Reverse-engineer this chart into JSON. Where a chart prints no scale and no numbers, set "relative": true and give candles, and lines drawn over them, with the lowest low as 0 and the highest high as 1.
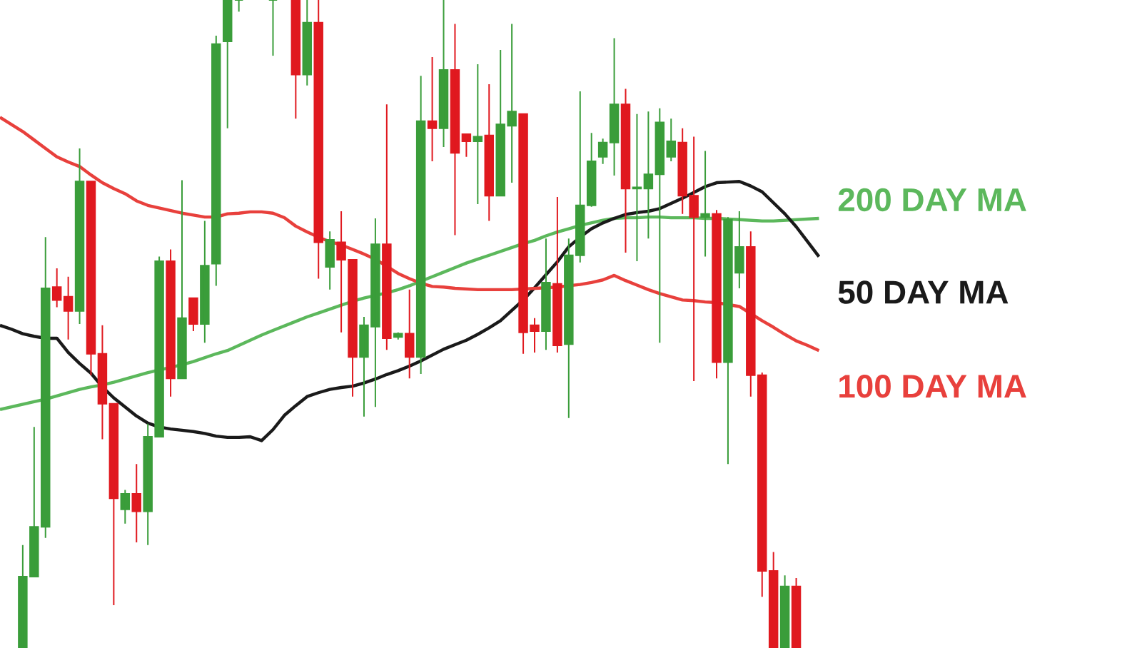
{
  "chart_data": {
    "type": "candlestick",
    "relative": true,
    "marker": "none",
    "line_style": "solid",
    "categories": [
      null,
      null,
      null,
      null,
      null,
      null,
      null,
      null,
      null,
      null,
      null,
      null,
      null,
      null,
      null,
      null,
      null,
      null,
      null,
      null,
      null,
      null,
      null,
      null,
      null,
      null,
      null,
      null,
      null,
      null,
      null,
      null,
      null,
      null,
      null,
      null,
      null,
      null,
      null,
      null,
      null,
      null,
      null,
      null,
      null,
      null,
      null,
      null,
      null,
      null,
      null,
      null,
      null,
      null,
      null,
      null,
      null,
      null,
      null,
      null,
      null,
      null,
      null,
      null,
      null,
      null,
      null,
      null,
      null,
      null,
      null,
      null,
      null
    ],
    "ohlc": [
      null,
      null,
      [
        0,
        0.159,
        0,
        0.11
      ],
      [
        0.11,
        0.341,
        0.11,
        0.187
      ],
      [
        0.187,
        0.634,
        0.17,
        0.555
      ],
      [
        0.557,
        0.586,
        0.526,
        0.537
      ],
      [
        0.542,
        0.573,
        0.476,
        0.52
      ],
      [
        0.52,
        0.771,
        0.5,
        0.72
      ],
      [
        0.72,
        0.72,
        0.421,
        0.454
      ],
      [
        0.454,
        0.498,
        0.322,
        0.377
      ],
      [
        0.377,
        0.377,
        0.066,
        0.231
      ],
      [
        0.214,
        0.244,
        0.192,
        0.238
      ],
      [
        0.238,
        0.284,
        0.163,
        0.211
      ],
      [
        0.211,
        0.346,
        0.159,
        0.326
      ],
      [
        0.326,
        0.604,
        0.326,
        0.597
      ],
      [
        0.597,
        0.615,
        0.388,
        0.416
      ],
      [
        0.416,
        0.722,
        0.416,
        0.509
      ],
      [
        0.54,
        0.54,
        0.489,
        0.5
      ],
      [
        0.5,
        0.659,
        0.471,
        0.59
      ],
      [
        0.593,
        0.945,
        0.559,
        0.932
      ],
      [
        0.936,
        1,
        0.802,
        1
      ],
      [
        1,
        1,
        0.982,
        1
      ],
      null,
      null,
      [
        1,
        1,
        0.914,
        1
      ],
      null,
      [
        1,
        1,
        0.817,
        0.885
      ],
      [
        0.885,
        1,
        0.868,
        0.965
      ],
      [
        0.965,
        1,
        0.57,
        0.626
      ],
      [
        0.588,
        0.643,
        0.553,
        0.63
      ],
      [
        0.626,
        0.674,
        0.487,
        0.599
      ],
      [
        0.599,
        0.599,
        0.388,
        0.449
      ],
      [
        0.449,
        0.511,
        0.357,
        0.498
      ],
      [
        0.496,
        0.663,
        0.372,
        0.623
      ],
      [
        0.623,
        0.839,
        0.46,
        0.478
      ],
      [
        0.48,
        0.487,
        0.476,
        0.485
      ],
      [
        0.485,
        0.553,
        0.416,
        0.449
      ],
      [
        0.449,
        0.883,
        0.423,
        0.813
      ],
      [
        0.813,
        0.912,
        0.751,
        0.802
      ],
      [
        0.802,
        1,
        0.773,
        0.892
      ],
      [
        0.892,
        0.963,
        0.637,
        0.764
      ],
      [
        0.793,
        0.793,
        0.758,
        0.782
      ],
      [
        0.782,
        0.901,
        0.685,
        0.789
      ],
      [
        0.791,
        0.87,
        0.659,
        0.698
      ],
      [
        0.698,
        0.923,
        0.698,
        0.808
      ],
      [
        0.806,
        0.963,
        0.718,
        0.828
      ],
      [
        0.824,
        0.824,
        0.454,
        0.487
      ],
      [
        0.498,
        0.509,
        0.456,
        0.489
      ],
      [
        0.489,
        0.632,
        0.46,
        0.564
      ],
      [
        0.562,
        0.696,
        0.456,
        0.467
      ],
      [
        0.469,
        0.632,
        0.355,
        0.606
      ],
      [
        0.606,
        0.859,
        0.595,
        0.683
      ],
      [
        0.683,
        0.795,
        0.681,
        0.751
      ],
      [
        0.758,
        0.786,
        0.747,
        0.78
      ],
      [
        0.78,
        0.941,
        0.729,
        0.839
      ],
      [
        0.839,
        0.863,
        0.61,
        0.709
      ],
      [
        0.709,
        0.824,
        0.597,
        0.711
      ],
      [
        0.709,
        0.828,
        0.632,
        0.731
      ],
      [
        0.731,
        0.833,
        0.471,
        0.811
      ],
      [
        0.758,
        0.817,
        0.751,
        0.782
      ],
      [
        0.78,
        0.802,
        0.67,
        0.698
      ],
      [
        0.698,
        0.789,
        0.412,
        0.665
      ],
      [
        0.665,
        0.767,
        0.604,
        0.67
      ],
      [
        0.67,
        0.676,
        0.416,
        0.441
      ],
      [
        0.441,
        0.665,
        0.284,
        0.661
      ],
      [
        0.579,
        0.674,
        0.555,
        0.619
      ],
      [
        0.619,
        0.643,
        0.388,
        0.421
      ],
      [
        0.421,
        0.425,
        0.079,
        0.119
      ],
      [
        0.119,
        0.148,
        0,
        0
      ],
      [
        0,
        0.112,
        0,
        0.095
      ],
      [
        0.095,
        0.108,
        0,
        0
      ],
      null,
      null
    ],
    "colors": [
      null,
      null,
      "#3a9d3a",
      "#3a9d3a",
      "#3a9d3a",
      "#e0191f",
      "#e0191f",
      "#3a9d3a",
      "#e0191f",
      "#e0191f",
      "#e0191f",
      "#3a9d3a",
      "#e0191f",
      "#3a9d3a",
      "#3a9d3a",
      "#e0191f",
      "#3a9d3a",
      "#e0191f",
      "#3a9d3a",
      "#3a9d3a",
      "#3a9d3a",
      "#3a9d3a",
      null,
      null,
      "#3a9d3a",
      null,
      "#e0191f",
      "#3a9d3a",
      "#e0191f",
      "#3a9d3a",
      "#e0191f",
      "#e0191f",
      "#3a9d3a",
      "#3a9d3a",
      "#e0191f",
      "#3a9d3a",
      "#e0191f",
      "#3a9d3a",
      "#e0191f",
      "#3a9d3a",
      "#e0191f",
      "#e0191f",
      "#3a9d3a",
      "#e0191f",
      "#3a9d3a",
      "#3a9d3a",
      "#e0191f",
      "#e0191f",
      "#3a9d3a",
      "#e0191f",
      "#3a9d3a",
      "#3a9d3a",
      "#3a9d3a",
      "#3a9d3a",
      "#3a9d3a",
      "#e0191f",
      "#3a9d3a",
      "#3a9d3a",
      "#3a9d3a",
      "#3a9d3a",
      "#e0191f",
      "#e0191f",
      "#3a9d3a",
      "#e0191f",
      "#3a9d3a",
      "#3a9d3a",
      "#e0191f",
      "#e0191f",
      "#e0191f",
      "#3a9d3a",
      "#e0191f",
      null,
      null
    ],
    "series": [
      {
        "name": "200 DAY MA",
        "type": "line",
        "color": "#5cb85c",
        "values": [
          0.368,
          0.372,
          0.376,
          0.38,
          0.384,
          0.389,
          0.394,
          0.399,
          0.403,
          0.406,
          0.41,
          0.415,
          0.42,
          0.425,
          0.429,
          0.433,
          0.437,
          0.442,
          0.448,
          0.454,
          0.459,
          0.467,
          0.475,
          0.483,
          0.49,
          0.497,
          0.504,
          0.511,
          0.517,
          0.523,
          0.529,
          0.535,
          0.54,
          0.544,
          0.548,
          0.553,
          0.559,
          0.566,
          0.573,
          0.58,
          0.587,
          0.594,
          0.6,
          0.606,
          0.612,
          0.618,
          0.624,
          0.629,
          0.636,
          0.642,
          0.647,
          0.652,
          0.656,
          0.66,
          0.663,
          0.664,
          0.664,
          0.665,
          0.665,
          0.664,
          0.664,
          0.664,
          0.663,
          0.663,
          0.662,
          0.661,
          0.66,
          0.659,
          0.659,
          0.66,
          0.661,
          0.662,
          0.663
        ]
      },
      {
        "name": "50 DAY MA",
        "type": "line",
        "color": "#1a1a1a",
        "values": [
          0.498,
          0.492,
          0.485,
          0.481,
          0.478,
          0.478,
          0.456,
          0.439,
          0.424,
          0.403,
          0.386,
          0.372,
          0.358,
          0.347,
          0.341,
          0.338,
          0.336,
          0.334,
          0.331,
          0.327,
          0.325,
          0.325,
          0.326,
          0.32,
          0.337,
          0.359,
          0.374,
          0.388,
          0.394,
          0.399,
          0.402,
          0.404,
          0.409,
          0.415,
          0.422,
          0.428,
          0.435,
          0.443,
          0.452,
          0.461,
          0.468,
          0.475,
          0.484,
          0.494,
          0.505,
          0.521,
          0.537,
          0.556,
          0.576,
          0.596,
          0.619,
          0.634,
          0.647,
          0.656,
          0.663,
          0.669,
          0.672,
          0.674,
          0.678,
          0.686,
          0.694,
          0.703,
          0.712,
          0.718,
          0.719,
          0.72,
          0.713,
          0.704,
          0.687,
          0.67,
          0.65,
          0.627,
          0.604
        ]
      },
      {
        "name": "100 DAY MA",
        "type": "line",
        "color": "#e8403c",
        "values": [
          0.819,
          0.808,
          0.797,
          0.784,
          0.771,
          0.758,
          0.75,
          0.743,
          0.73,
          0.718,
          0.709,
          0.701,
          0.69,
          0.683,
          0.679,
          0.675,
          0.671,
          0.668,
          0.665,
          0.665,
          0.67,
          0.671,
          0.673,
          0.673,
          0.671,
          0.664,
          0.651,
          0.642,
          0.634,
          0.627,
          0.622,
          0.615,
          0.608,
          0.6,
          0.589,
          0.578,
          0.57,
          0.563,
          0.558,
          0.557,
          0.555,
          0.554,
          0.553,
          0.553,
          0.553,
          0.553,
          0.554,
          0.555,
          0.556,
          0.557,
          0.559,
          0.561,
          0.564,
          0.568,
          0.575,
          0.567,
          0.56,
          0.553,
          0.547,
          0.542,
          0.537,
          0.536,
          0.534,
          0.533,
          0.53,
          0.527,
          0.516,
          0.505,
          0.495,
          0.484,
          0.474,
          0.467,
          0.459
        ]
      }
    ]
  }
}
